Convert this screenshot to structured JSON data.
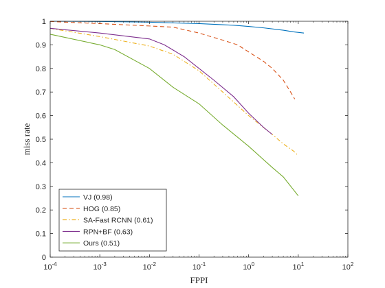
{
  "chart_data": {
    "type": "line",
    "xlabel": "FPPI",
    "ylabel": "miss rate",
    "xscale": "log",
    "xlim": [
      0.0001,
      100
    ],
    "ylim": [
      0,
      1
    ],
    "x_ticks": [
      {
        "value": 0.0001,
        "base": "10",
        "exp": "-4"
      },
      {
        "value": 0.001,
        "base": "10",
        "exp": "-3"
      },
      {
        "value": 0.01,
        "base": "10",
        "exp": "-2"
      },
      {
        "value": 0.1,
        "base": "10",
        "exp": "-1"
      },
      {
        "value": 1,
        "base": "10",
        "exp": "0"
      },
      {
        "value": 10,
        "base": "10",
        "exp": "1"
      },
      {
        "value": 100,
        "base": "10",
        "exp": "2"
      }
    ],
    "y_ticks": [
      "0",
      "0.1",
      "0.2",
      "0.3",
      "0.4",
      "0.5",
      "0.6",
      "0.7",
      "0.8",
      "0.9",
      "1"
    ],
    "grid": false,
    "legend_position": "bottom-left",
    "series": [
      {
        "name": "VJ (0.98)",
        "color": "#0072BD",
        "dash": "solid",
        "points": [
          [
            0.0001,
            1.0
          ],
          [
            0.001,
            0.999
          ],
          [
            0.01,
            0.996
          ],
          [
            0.1,
            0.99
          ],
          [
            0.5,
            0.983
          ],
          [
            1,
            0.978
          ],
          [
            2,
            0.972
          ],
          [
            5,
            0.962
          ],
          [
            8,
            0.955
          ],
          [
            13,
            0.95
          ]
        ]
      },
      {
        "name": "HOG (0.85)",
        "color": "#D95319",
        "dash": "dashed",
        "points": [
          [
            0.0001,
            0.999
          ],
          [
            0.001,
            0.99
          ],
          [
            0.01,
            0.98
          ],
          [
            0.03,
            0.975
          ],
          [
            0.1,
            0.95
          ],
          [
            0.3,
            0.92
          ],
          [
            0.6,
            0.9
          ],
          [
            1,
            0.87
          ],
          [
            2,
            0.83
          ],
          [
            3,
            0.8
          ],
          [
            5,
            0.75
          ],
          [
            7,
            0.7
          ],
          [
            8.5,
            0.67
          ]
        ]
      },
      {
        "name": "SA-Fast RCNN (0.61)",
        "color": "#EDB120",
        "dash": "dashdot",
        "points": [
          [
            0.0001,
            0.97
          ],
          [
            0.001,
            0.935
          ],
          [
            0.01,
            0.895
          ],
          [
            0.03,
            0.86
          ],
          [
            0.1,
            0.79
          ],
          [
            0.3,
            0.7
          ],
          [
            1,
            0.6
          ],
          [
            3,
            0.52
          ],
          [
            5,
            0.48
          ],
          [
            8,
            0.45
          ],
          [
            10,
            0.43
          ]
        ]
      },
      {
        "name": "RPN+BF (0.63)",
        "color": "#7E2F8E",
        "dash": "solid",
        "points": [
          [
            0.0001,
            0.97
          ],
          [
            0.001,
            0.95
          ],
          [
            0.01,
            0.925
          ],
          [
            0.02,
            0.9
          ],
          [
            0.05,
            0.85
          ],
          [
            0.1,
            0.8
          ],
          [
            0.2,
            0.75
          ],
          [
            0.5,
            0.68
          ],
          [
            1,
            0.61
          ],
          [
            2,
            0.55
          ],
          [
            3,
            0.52
          ]
        ]
      },
      {
        "name": "Ours (0.51)",
        "color": "#77AC30",
        "dash": "solid",
        "points": [
          [
            0.0001,
            0.945
          ],
          [
            0.001,
            0.9
          ],
          [
            0.002,
            0.88
          ],
          [
            0.01,
            0.8
          ],
          [
            0.03,
            0.72
          ],
          [
            0.1,
            0.65
          ],
          [
            0.3,
            0.56
          ],
          [
            1,
            0.47
          ],
          [
            3,
            0.38
          ],
          [
            5,
            0.34
          ],
          [
            10,
            0.26
          ]
        ]
      }
    ]
  }
}
